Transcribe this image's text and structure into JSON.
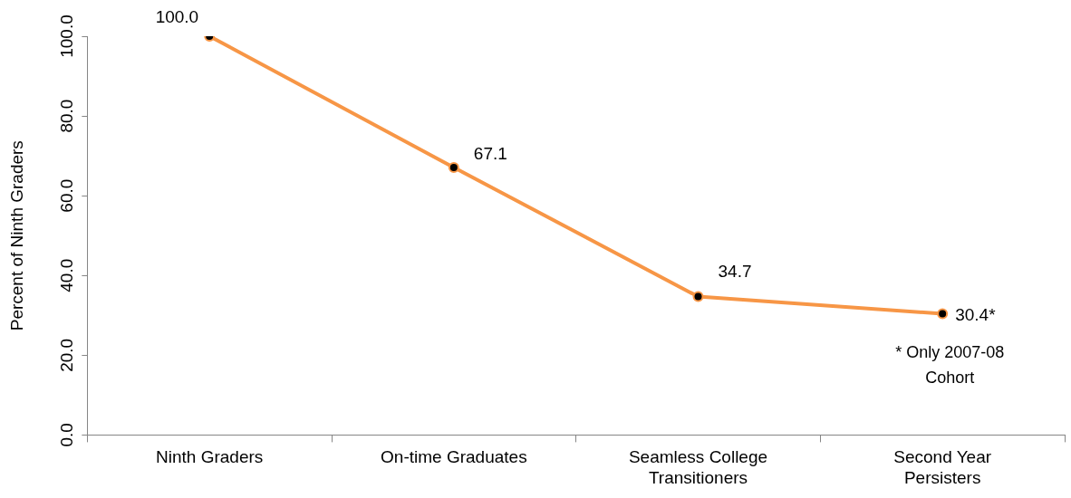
{
  "chart_data": {
    "type": "line",
    "ylabel": "Percent of Ninth Graders",
    "categories": [
      "Ninth Graders",
      "On-time Graduates",
      "Seamless College Transitioners",
      "Second Year Persisters"
    ],
    "series": [
      {
        "color": "#f79646",
        "values": [
          100.0,
          67.1,
          34.7,
          30.4
        ],
        "value_labels": [
          "100.0",
          "67.1",
          "34.7",
          "30.4*"
        ]
      }
    ],
    "ylim": [
      0,
      100
    ],
    "yticks": [
      {
        "value": 0,
        "label": "0.0"
      },
      {
        "value": 20,
        "label": "20.0"
      },
      {
        "value": 40,
        "label": "40.0"
      },
      {
        "value": 60,
        "label": "60.0"
      },
      {
        "value": 80,
        "label": "80.0"
      },
      {
        "value": 100,
        "label": "100.0"
      }
    ],
    "annotations": [
      {
        "text": "* Only 2007-08 Cohort",
        "x": "Second Year Persisters",
        "y": 30.4
      }
    ],
    "grid": false,
    "legend": false,
    "marker": "circle",
    "line_style": "solid"
  }
}
